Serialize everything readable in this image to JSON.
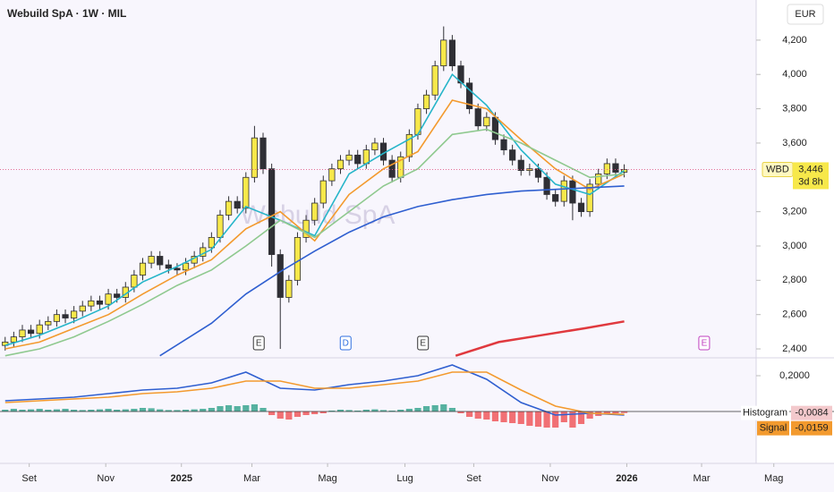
{
  "chart_data": [
    {
      "type": "candlestick",
      "title": "Webuild SpA · 1W · MIL",
      "watermark": "Webuild SpA",
      "currency": "EUR",
      "xlim": [
        0,
        97
      ],
      "ylim": [
        2348,
        4434
      ],
      "yticks": [
        {
          "value": 2400,
          "label": "2,400"
        },
        {
          "value": 2600,
          "label": "2,600"
        },
        {
          "value": 2800,
          "label": "2,800"
        },
        {
          "value": 3000,
          "label": "3,000"
        },
        {
          "value": 3200,
          "label": "3,200"
        },
        {
          "value": 3600,
          "label": "3,600"
        },
        {
          "value": 3800,
          "label": "3,800"
        },
        {
          "value": 4000,
          "label": "4,000"
        },
        {
          "value": 4200,
          "label": "4,200"
        }
      ],
      "up_color": "#f7e84a",
      "down_color": "#2f2f35",
      "x": [
        0.6,
        1.6,
        2.6,
        3.6,
        4.6,
        5.6,
        6.6,
        7.6,
        8.6,
        9.6,
        10.6,
        11.6,
        12.6,
        13.6,
        14.6,
        15.6,
        16.6,
        17.6,
        18.6,
        19.6,
        20.6,
        21.6,
        22.6,
        23.6,
        24.6,
        25.6,
        26.6,
        27.6,
        28.6,
        29.6,
        30.6,
        31.6,
        32.6,
        33.6,
        34.6,
        35.6,
        36.6,
        37.6,
        38.6,
        39.6,
        40.6,
        41.6,
        42.6,
        43.6,
        44.6,
        45.6,
        46.6,
        47.6,
        48.6,
        49.6,
        50.6,
        51.6,
        52.6,
        53.6,
        54.6,
        55.6,
        56.6,
        57.6,
        58.6,
        59.6,
        60.6,
        61.6,
        62.6,
        63.6,
        64.6,
        65.6,
        66.6,
        67.6,
        68.6,
        69.6,
        70.6,
        71.6,
        72.6
      ],
      "open": [
        2420,
        2440,
        2470,
        2510,
        2490,
        2540,
        2560,
        2600,
        2580,
        2620,
        2650,
        2680,
        2660,
        2720,
        2700,
        2760,
        2830,
        2900,
        2940,
        2890,
        2870,
        2860,
        2900,
        2940,
        2990,
        3050,
        3180,
        3260,
        3220,
        3400,
        3630,
        3450,
        2950,
        2700,
        2800,
        3050,
        3150,
        3250,
        3380,
        3450,
        3500,
        3530,
        3480,
        3560,
        3600,
        3500,
        3400,
        3520,
        3650,
        3800,
        3880,
        4050,
        4200,
        4050,
        3950,
        3800,
        3700,
        3750,
        3620,
        3560,
        3500,
        3440,
        3450,
        3400,
        3300,
        3260,
        3380,
        3250,
        3200,
        3360,
        3420,
        3480,
        3430
      ],
      "high": [
        2470,
        2500,
        2540,
        2540,
        2570,
        2590,
        2630,
        2630,
        2650,
        2680,
        2710,
        2710,
        2750,
        2750,
        2790,
        2860,
        2930,
        2970,
        2970,
        2920,
        2900,
        2930,
        2970,
        3020,
        3080,
        3210,
        3290,
        3290,
        3430,
        3700,
        3660,
        3480,
        2980,
        2830,
        3080,
        3180,
        3280,
        3410,
        3480,
        3530,
        3560,
        3560,
        3590,
        3630,
        3630,
        3530,
        3550,
        3680,
        3830,
        3910,
        4080,
        4280,
        4230,
        4080,
        3980,
        3830,
        3780,
        3780,
        3650,
        3590,
        3530,
        3480,
        3480,
        3430,
        3330,
        3410,
        3410,
        3280,
        3390,
        3450,
        3510,
        3510,
        3476
      ],
      "low": [
        2390,
        2410,
        2440,
        2460,
        2460,
        2510,
        2530,
        2550,
        2550,
        2590,
        2620,
        2630,
        2630,
        2670,
        2670,
        2730,
        2800,
        2870,
        2860,
        2840,
        2830,
        2830,
        2870,
        2910,
        2960,
        3020,
        3150,
        3190,
        3190,
        3370,
        3420,
        2880,
        2400,
        2670,
        2770,
        3020,
        3120,
        3220,
        3350,
        3420,
        3470,
        3450,
        3450,
        3530,
        3470,
        3370,
        3370,
        3490,
        3620,
        3770,
        3850,
        4020,
        4020,
        3920,
        3770,
        3670,
        3670,
        3590,
        3530,
        3470,
        3410,
        3410,
        3370,
        3270,
        3230,
        3230,
        3150,
        3170,
        3170,
        3330,
        3390,
        3400,
        3400
      ],
      "close": [
        2440,
        2470,
        2510,
        2490,
        2540,
        2560,
        2600,
        2580,
        2620,
        2650,
        2680,
        2660,
        2720,
        2700,
        2760,
        2830,
        2900,
        2940,
        2890,
        2870,
        2860,
        2900,
        2940,
        2990,
        3050,
        3180,
        3260,
        3220,
        3400,
        3630,
        3450,
        2950,
        2700,
        2800,
        3050,
        3150,
        3250,
        3380,
        3450,
        3500,
        3530,
        3480,
        3560,
        3600,
        3500,
        3400,
        3520,
        3650,
        3800,
        3880,
        4050,
        4200,
        4050,
        3950,
        3800,
        3700,
        3750,
        3620,
        3560,
        3500,
        3440,
        3450,
        3400,
        3300,
        3260,
        3380,
        3250,
        3200,
        3360,
        3420,
        3480,
        3430,
        3446
      ],
      "series": [
        {
          "color": "#26b5c9",
          "x": [
            0.6,
            4.6,
            8.6,
            12.6,
            16.6,
            20.6,
            24.6,
            28.6,
            32.6,
            36.6,
            40.6,
            44.6,
            48.6,
            52.6,
            56.6,
            60.6,
            64.6,
            68.6,
            72.6
          ],
          "values": [
            2420,
            2480,
            2560,
            2650,
            2790,
            2880,
            2980,
            3230,
            3150,
            3060,
            3420,
            3540,
            3650,
            4000,
            3820,
            3560,
            3360,
            3300,
            3440
          ]
        },
        {
          "color": "#f39a2e",
          "x": [
            0.6,
            4.6,
            8.6,
            12.6,
            16.6,
            20.6,
            24.6,
            28.6,
            32.6,
            36.6,
            40.6,
            44.6,
            48.6,
            52.6,
            56.6,
            60.6,
            64.6,
            68.6,
            72.6
          ],
          "values": [
            2400,
            2440,
            2520,
            2600,
            2720,
            2830,
            2920,
            3100,
            3200,
            3030,
            3300,
            3450,
            3550,
            3850,
            3800,
            3620,
            3450,
            3330,
            3420
          ]
        },
        {
          "color": "#8fc98f",
          "x": [
            0.6,
            4.6,
            8.6,
            12.6,
            16.6,
            20.6,
            24.6,
            28.6,
            32.6,
            36.6,
            40.6,
            44.6,
            48.6,
            52.6,
            56.6,
            60.6,
            64.6,
            68.6,
            72.6
          ],
          "values": [
            2360,
            2400,
            2470,
            2560,
            2660,
            2770,
            2860,
            3000,
            3150,
            3050,
            3200,
            3350,
            3450,
            3650,
            3680,
            3600,
            3500,
            3400,
            3420
          ]
        },
        {
          "color": "#2f5fd0",
          "x": [
            18.6,
            24.6,
            28.6,
            32.6,
            36.6,
            40.6,
            44.6,
            48.6,
            52.6,
            56.6,
            60.6,
            64.6,
            68.6,
            72.6
          ],
          "values": [
            2360,
            2550,
            2720,
            2850,
            2970,
            3080,
            3170,
            3230,
            3270,
            3300,
            3320,
            3330,
            3340,
            3350
          ]
        },
        {
          "color": "#e0393e",
          "x": [
            53.0,
            58.0,
            63.0,
            68.0,
            72.6
          ],
          "values": [
            2360,
            2440,
            2480,
            2520,
            2560
          ]
        }
      ],
      "last": {
        "symbol": "WBD",
        "value": 3446,
        "label": "3,446",
        "countdown": "3d 8h"
      },
      "events": [
        {
          "label": "E",
          "x": 30.1,
          "color": "#333333"
        },
        {
          "label": "D",
          "x": 40.2,
          "color": "#2f6fe0"
        },
        {
          "label": "E",
          "x": 49.2,
          "color": "#333333"
        },
        {
          "label": "E",
          "x": 81.9,
          "color": "#c040c0"
        }
      ]
    },
    {
      "type": "macd",
      "xlim": [
        0,
        97
      ],
      "ylim": [
        -0.29,
        0.3
      ],
      "yticks": [
        {
          "value": 0.2,
          "label": "0,2000"
        }
      ],
      "xticks": [
        {
          "value": 3.4,
          "label": "Set"
        },
        {
          "value": 12.3,
          "label": "Nov"
        },
        {
          "value": 21.1,
          "label": "2025"
        },
        {
          "value": 29.3,
          "label": "Mar"
        },
        {
          "value": 38.1,
          "label": "Mag"
        },
        {
          "value": 47.1,
          "label": "Lug"
        },
        {
          "value": 55.1,
          "label": "Set"
        },
        {
          "value": 64.0,
          "label": "Nov"
        },
        {
          "value": 72.9,
          "label": "2026"
        },
        {
          "value": 81.6,
          "label": "Mar"
        },
        {
          "value": 90.0,
          "label": "Mag"
        }
      ],
      "pos_color": "#3aa58f",
      "neg_color": "#f0585c",
      "hist_x": [
        0.6,
        1.6,
        2.6,
        3.6,
        4.6,
        5.6,
        6.6,
        7.6,
        8.6,
        9.6,
        10.6,
        11.6,
        12.6,
        13.6,
        14.6,
        15.6,
        16.6,
        17.6,
        18.6,
        19.6,
        20.6,
        21.6,
        22.6,
        23.6,
        24.6,
        25.6,
        26.6,
        27.6,
        28.6,
        29.6,
        30.6,
        31.6,
        32.6,
        33.6,
        34.6,
        35.6,
        36.6,
        37.6,
        38.6,
        39.6,
        40.6,
        41.6,
        42.6,
        43.6,
        44.6,
        45.6,
        46.6,
        47.6,
        48.6,
        49.6,
        50.6,
        51.6,
        52.6,
        53.6,
        54.6,
        55.6,
        56.6,
        57.6,
        58.6,
        59.6,
        60.6,
        61.6,
        62.6,
        63.6,
        64.6,
        65.6,
        66.6,
        67.6,
        68.6,
        69.6,
        70.6,
        71.6,
        72.6
      ],
      "histogram": [
        0.01,
        0.015,
        0.01,
        0.012,
        0.015,
        0.01,
        0.012,
        0.015,
        0.01,
        0.008,
        0.01,
        0.012,
        0.015,
        0.01,
        0.012,
        0.015,
        0.02,
        0.018,
        0.012,
        0.008,
        0.008,
        0.01,
        0.012,
        0.015,
        0.02,
        0.03,
        0.035,
        0.03,
        0.035,
        0.04,
        0.02,
        -0.02,
        -0.04,
        -0.045,
        -0.03,
        -0.02,
        -0.015,
        -0.01,
        0.005,
        0.01,
        0.008,
        0.005,
        0.01,
        0.012,
        0.008,
        0.005,
        0.01,
        0.015,
        0.02,
        0.03,
        0.035,
        0.04,
        0.02,
        -0.01,
        -0.03,
        -0.04,
        -0.045,
        -0.055,
        -0.06,
        -0.065,
        -0.07,
        -0.08,
        -0.085,
        -0.09,
        -0.09,
        -0.06,
        -0.09,
        -0.07,
        -0.04,
        -0.025,
        -0.015,
        -0.01,
        -0.0084
      ],
      "series": [
        {
          "color": "#2f5fd0",
          "x": [
            0.6,
            4.6,
            8.6,
            12.6,
            16.6,
            20.6,
            24.6,
            28.6,
            32.6,
            36.6,
            40.6,
            44.6,
            48.6,
            52.6,
            56.6,
            60.6,
            64.6,
            68.6,
            72.6
          ],
          "values": [
            0.06,
            0.07,
            0.08,
            0.1,
            0.12,
            0.13,
            0.16,
            0.22,
            0.13,
            0.12,
            0.15,
            0.17,
            0.2,
            0.26,
            0.18,
            0.05,
            -0.02,
            -0.01,
            -0.02
          ]
        },
        {
          "color": "#f39a2e",
          "x": [
            0.6,
            4.6,
            8.6,
            12.6,
            16.6,
            20.6,
            24.6,
            28.6,
            32.6,
            36.6,
            40.6,
            44.6,
            48.6,
            52.6,
            56.6,
            60.6,
            64.6,
            68.6,
            72.6
          ],
          "values": [
            0.05,
            0.06,
            0.07,
            0.08,
            0.1,
            0.11,
            0.13,
            0.17,
            0.17,
            0.13,
            0.13,
            0.15,
            0.17,
            0.22,
            0.22,
            0.12,
            0.03,
            -0.01,
            -0.016
          ]
        }
      ],
      "hist_label": "Histogram",
      "hist_last": {
        "value": -0.0084,
        "label": "-0,0084"
      },
      "signal_label": "Signal",
      "signal_last": {
        "value": -0.0159,
        "label": "-0,0159"
      }
    }
  ]
}
